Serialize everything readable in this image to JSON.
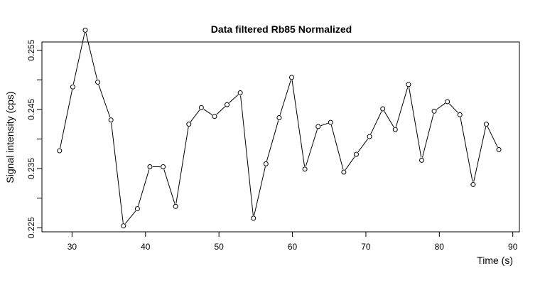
{
  "chart_data": {
    "type": "line",
    "title": "Data filtered Rb85 Normalized",
    "xlabel": "Time (s)",
    "ylabel": "Signal intensity (cps)",
    "xlim": [
      25.9,
      90.9
    ],
    "ylim": [
      0.2243,
      0.2564
    ],
    "x_ticks": [
      30,
      40,
      50,
      60,
      70,
      80,
      90
    ],
    "y_ticks": [
      0.225,
      0.23,
      0.235,
      0.24,
      0.245,
      0.25,
      0.255
    ],
    "y_tick_labels": [
      "0.225",
      "",
      "0.235",
      "",
      "0.245",
      "",
      "0.255"
    ],
    "grid": false,
    "marker": "open-circle",
    "series": [
      {
        "x": [
          28.3,
          30.1,
          31.8,
          33.5,
          35.3,
          37.0,
          38.9,
          40.6,
          42.4,
          44.1,
          45.9,
          47.6,
          49.4,
          51.1,
          52.9,
          54.7,
          56.4,
          58.2,
          59.9,
          61.7,
          63.5,
          65.2,
          67.0,
          68.7,
          70.5,
          72.3,
          74.0,
          75.8,
          77.6,
          79.3,
          81.1,
          82.8,
          84.6,
          86.4,
          88.1
        ],
        "y": [
          0.238,
          0.2488,
          0.2584,
          0.2496,
          0.2432,
          0.2253,
          0.2282,
          0.2353,
          0.2353,
          0.2286,
          0.2425,
          0.2453,
          0.2438,
          0.2458,
          0.2478,
          0.2266,
          0.2358,
          0.2436,
          0.2504,
          0.2349,
          0.2421,
          0.2428,
          0.2344,
          0.2374,
          0.2404,
          0.2451,
          0.2416,
          0.2492,
          0.2364,
          0.2447,
          0.2463,
          0.2441,
          0.2323,
          0.2425,
          0.2382
        ]
      }
    ]
  }
}
